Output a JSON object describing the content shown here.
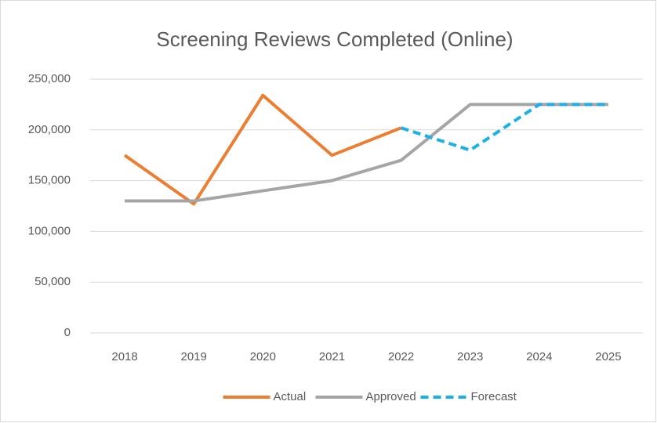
{
  "chart_data": {
    "type": "line",
    "title": "Screening Reviews Completed (Online)",
    "categories": [
      "2018",
      "2019",
      "2020",
      "2021",
      "2022",
      "2023",
      "2024",
      "2025"
    ],
    "series": [
      {
        "name": "Actual",
        "color": "#ed7d31",
        "dashed": false,
        "values": [
          175000,
          127000,
          234000,
          175000,
          202000,
          null,
          null,
          null
        ]
      },
      {
        "name": "Approved",
        "color": "#a5a5a5",
        "dashed": false,
        "values": [
          130000,
          130000,
          140000,
          150000,
          170000,
          225000,
          225000,
          225000
        ]
      },
      {
        "name": "Forecast",
        "color": "#1cb0e8",
        "dashed": true,
        "values": [
          null,
          null,
          null,
          null,
          202000,
          180000,
          225000,
          225000
        ]
      }
    ],
    "ylim": [
      0,
      250000
    ],
    "yticks": [
      0,
      {
        "value": 50000,
        "label": "50,000"
      },
      {
        "value": 100000,
        "label": "100,000"
      },
      {
        "value": 150000,
        "label": "150,000"
      },
      {
        "value": 200000,
        "label": "200,000"
      },
      {
        "value": 250000,
        "label": "250,000"
      }
    ],
    "grid": true,
    "legend": "bottom"
  }
}
